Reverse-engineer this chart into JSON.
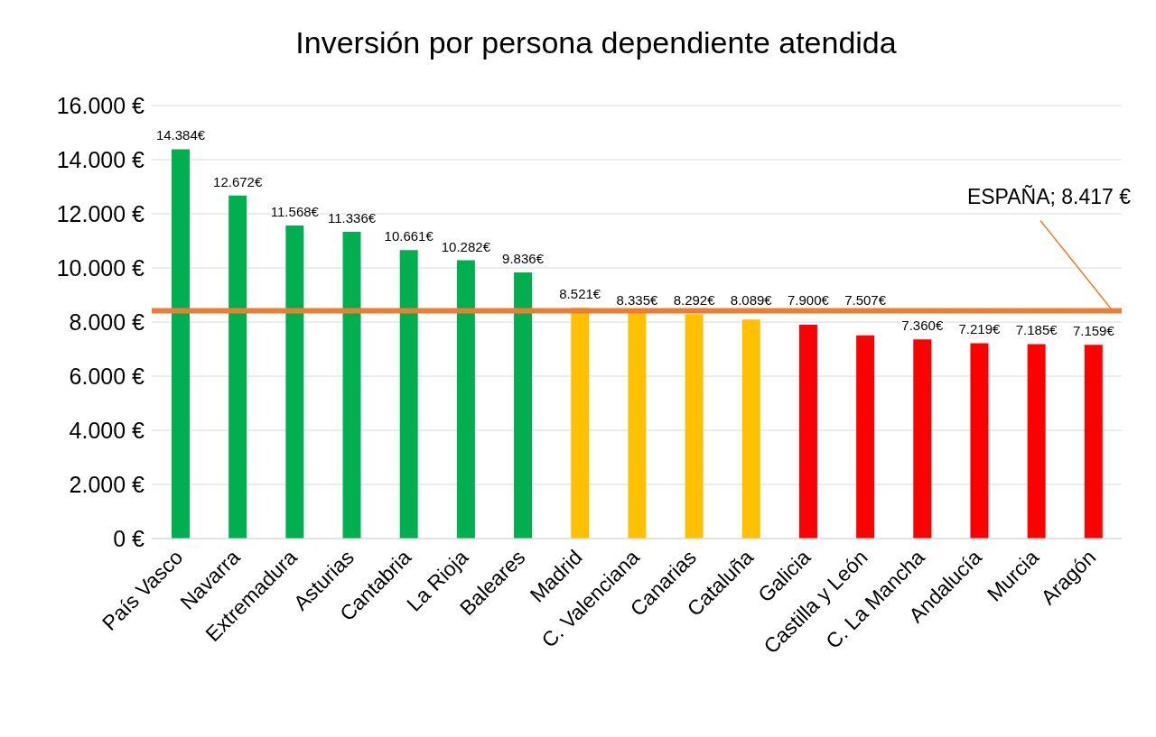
{
  "chart_data": {
    "type": "bar",
    "title": "Inversión por persona dependiente atendida",
    "categories": [
      "País Vasco",
      "Navarra",
      "Extremadura",
      "Asturias",
      "Cantabria",
      "La Rioja",
      "Baleares",
      "Madrid",
      "C. Valenciana",
      "Canarias",
      "Cataluña",
      "Galicia",
      "Castilla y León",
      "C. La Mancha",
      "Andalucía",
      "Murcia",
      "Aragón"
    ],
    "values": [
      14384,
      12672,
      11568,
      11336,
      10661,
      10282,
      9836,
      8521,
      8335,
      8292,
      8089,
      7900,
      7507,
      7360,
      7219,
      7185,
      7159
    ],
    "value_labels": [
      "14.384€",
      "12.672€",
      "11.568€",
      "11.336€",
      "10.661€",
      "10.282€",
      "9.836€",
      "8.521€",
      "8.335€",
      "8.292€",
      "8.089€",
      "7.900€",
      "7.507€",
      "7.360€",
      "7.219€",
      "7.185€",
      "7.159€"
    ],
    "colors": [
      "#00b050",
      "#00b050",
      "#00b050",
      "#00b050",
      "#00b050",
      "#00b050",
      "#00b050",
      "#ffc000",
      "#ffc000",
      "#ffc000",
      "#ffc000",
      "#ff0000",
      "#ff0000",
      "#ff0000",
      "#ff0000",
      "#ff0000",
      "#ff0000"
    ],
    "ylim": [
      0,
      16000
    ],
    "yticks": [
      {
        "value": 0,
        "label": "0 €"
      },
      {
        "value": 2000,
        "label": "2.000 €"
      },
      {
        "value": 4000,
        "label": "4.000 €"
      },
      {
        "value": 6000,
        "label": "6.000 €"
      },
      {
        "value": 8000,
        "label": "8.000 €"
      },
      {
        "value": 10000,
        "label": "10.000 €"
      },
      {
        "value": 12000,
        "label": "12.000 €"
      },
      {
        "value": 14000,
        "label": "14.000 €"
      },
      {
        "value": 16000,
        "label": "16.000 €"
      }
    ],
    "grid": "y",
    "ref_lines": [
      {
        "axis": "y",
        "value": 8417,
        "label": "ESPAÑA; 8.417 €",
        "color": "#ed7d31"
      }
    ]
  }
}
